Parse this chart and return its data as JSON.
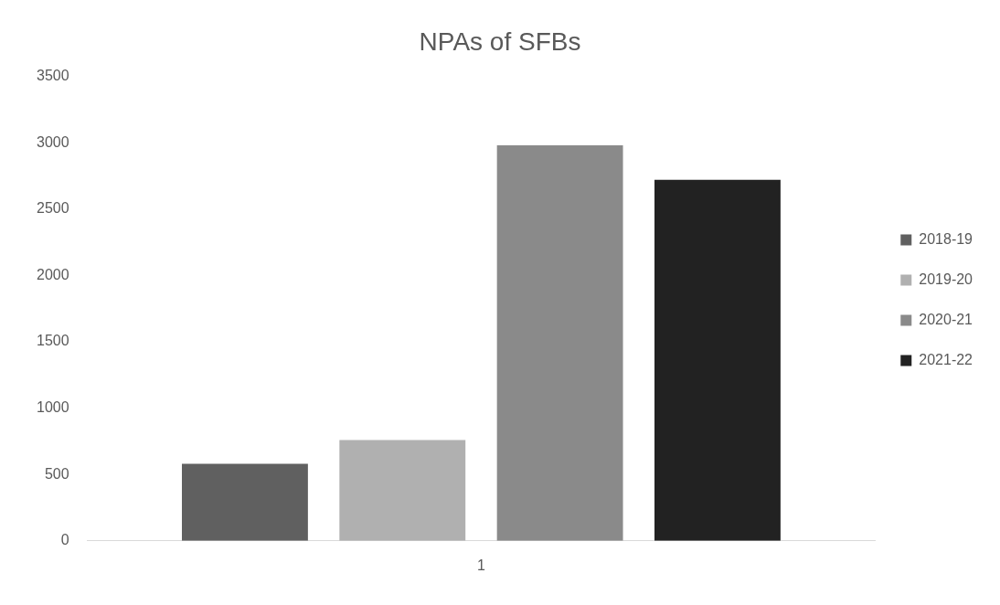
{
  "chart_data": {
    "type": "bar",
    "title": "NPAs of SFBs",
    "categories": [
      "1"
    ],
    "series": [
      {
        "name": "2018-19",
        "color": "#606060",
        "values": [
          580
        ]
      },
      {
        "name": "2019-20",
        "color": "#b0b0b0",
        "values": [
          760
        ]
      },
      {
        "name": "2020-21",
        "color": "#8a8a8a",
        "values": [
          2980
        ]
      },
      {
        "name": "2021-22",
        "color": "#222222",
        "values": [
          2720
        ]
      }
    ],
    "ylim": [
      0,
      3500
    ],
    "yticks": [
      0,
      500,
      1000,
      1500,
      2000,
      2500,
      3000,
      3500
    ],
    "grid": false,
    "legend": "right"
  }
}
